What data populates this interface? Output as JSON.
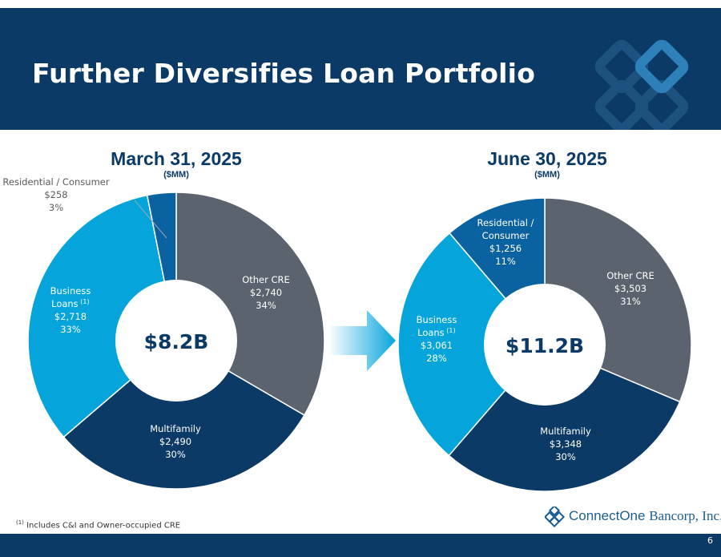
{
  "slide": {
    "title": "Further Diversifies Loan Portfolio",
    "page_number": "6",
    "footnote_marker": "(1)",
    "footnote_text": "Includes C&I and Owner-occupied CRE",
    "logo": {
      "name_part1": "ConnectOne",
      "name_part2": "Bancorp, Inc."
    }
  },
  "colors": {
    "Other CRE": "#5b646e",
    "Multifamily": "#0c3a66",
    "Business Loans": "#05a5dc",
    "Residential / Consumer": "#0b62a1",
    "header": "#0c3a66"
  },
  "chart_data": [
    {
      "type": "pie",
      "title": "March 31, 2025",
      "unit": "($MM)",
      "center_label": "$8.2B",
      "slices": [
        {
          "name": "Other CRE",
          "value": 2740,
          "value_label": "$2,740",
          "pct_label": "34%",
          "label_lines": [
            "Other CRE"
          ]
        },
        {
          "name": "Multifamily",
          "value": 2490,
          "value_label": "$2,490",
          "pct_label": "30%",
          "label_lines": [
            "Multifamily"
          ]
        },
        {
          "name": "Business Loans",
          "value": 2718,
          "value_label": "$2,718",
          "pct_label": "33%",
          "label_lines": [
            "Business",
            "Loans"
          ],
          "footnote": "(1)"
        },
        {
          "name": "Residential / Consumer",
          "value": 258,
          "value_label": "$258",
          "pct_label": "3%",
          "label_lines": [
            "Residential / Consumer"
          ]
        }
      ]
    },
    {
      "type": "pie",
      "title": "June 30, 2025",
      "unit": "($MM)",
      "center_label": "$11.2B",
      "slices": [
        {
          "name": "Other CRE",
          "value": 3503,
          "value_label": "$3,503",
          "pct_label": "31%",
          "label_lines": [
            "Other CRE"
          ]
        },
        {
          "name": "Multifamily",
          "value": 3348,
          "value_label": "$3,348",
          "pct_label": "30%",
          "label_lines": [
            "Multifamily"
          ]
        },
        {
          "name": "Business Loans",
          "value": 3061,
          "value_label": "$3,061",
          "pct_label": "28%",
          "label_lines": [
            "Business",
            "Loans"
          ],
          "footnote": "(1)"
        },
        {
          "name": "Residential / Consumer",
          "value": 1256,
          "value_label": "$1,256",
          "pct_label": "11%",
          "label_lines": [
            "Residential /",
            "Consumer"
          ]
        }
      ]
    }
  ]
}
